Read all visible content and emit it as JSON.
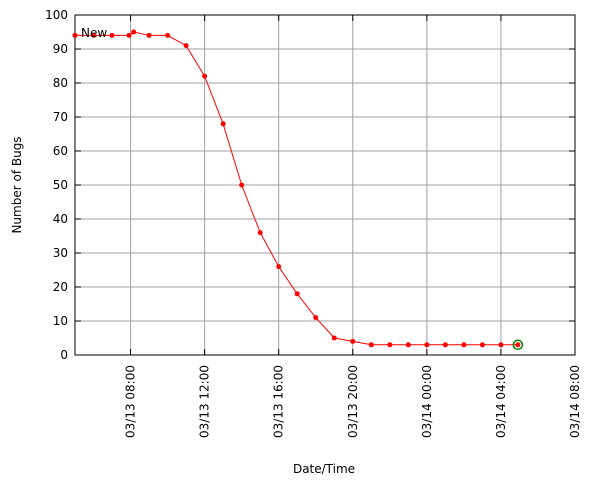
{
  "chart_data": {
    "type": "line",
    "xlabel": "Date/Time",
    "ylabel": "Number of Bugs",
    "x": [
      "03/13 05:00",
      "03/13 06:00",
      "03/13 07:00",
      "03/13 07:55",
      "03/13 08:10",
      "03/13 09:00",
      "03/13 10:00",
      "03/13 11:00",
      "03/13 12:00",
      "03/13 13:00",
      "03/13 14:00",
      "03/13 15:00",
      "03/13 16:00",
      "03/13 17:00",
      "03/13 18:00",
      "03/13 19:00",
      "03/13 20:00",
      "03/13 21:00",
      "03/13 22:00",
      "03/13 23:00",
      "03/14 00:00",
      "03/14 01:00",
      "03/14 02:00",
      "03/14 03:00",
      "03/14 04:00",
      "03/14 04:55"
    ],
    "series": [
      {
        "name": "New",
        "color": "#ff0000",
        "values": [
          94,
          94,
          94,
          94,
          95,
          94,
          94,
          91,
          82,
          68,
          50,
          36,
          26,
          18,
          11,
          5,
          4,
          3,
          3,
          3,
          3,
          3,
          3,
          3,
          3,
          3
        ]
      }
    ],
    "xlim": [
      "03/13 05:00",
      "03/14 08:00"
    ],
    "xticks": [
      "03/13 08:00",
      "03/13 12:00",
      "03/13 16:00",
      "03/13 20:00",
      "03/14 00:00",
      "03/14 04:00",
      "03/14 08:00"
    ],
    "ylim": [
      0,
      100
    ],
    "yticks": [
      0,
      10,
      20,
      30,
      40,
      50,
      60,
      70,
      80,
      90,
      100
    ],
    "grid": true,
    "legend": "top-left"
  }
}
